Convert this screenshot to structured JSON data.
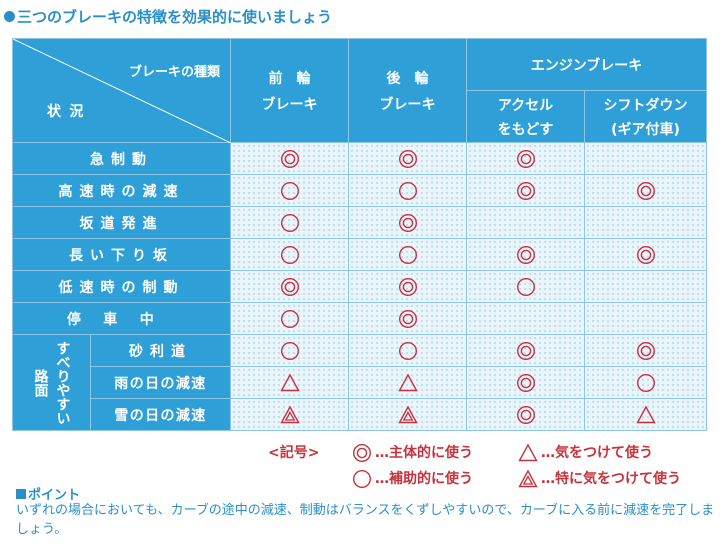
{
  "heading": "三つのブレーキの特徴を効果的に使いましょう",
  "colors": {
    "header_blue": "#2f9fd8",
    "mark_red": "#c8323c",
    "text_blue": "#2a8fc9"
  },
  "table": {
    "corner_top": "ブレーキの種類",
    "corner_bottom": "状況",
    "col_front": [
      "前　輪",
      "ブレーキ"
    ],
    "col_rear": [
      "後　輪",
      "ブレーキ"
    ],
    "col_engine": "エンジンブレーキ",
    "col_accel": [
      "アクセル",
      "をもどす"
    ],
    "col_shift": [
      "シフトダウン",
      "(ギア付車)"
    ],
    "group_label": [
      "すべりやすい",
      "路面"
    ],
    "rows": [
      {
        "label": "急制動",
        "front": "double",
        "rear": "double",
        "accel": "double",
        "shift": ""
      },
      {
        "label": "高速時の減速",
        "front": "circle",
        "rear": "circle",
        "accel": "double",
        "shift": "double"
      },
      {
        "label": "坂道発進",
        "front": "circle",
        "rear": "double",
        "accel": "",
        "shift": ""
      },
      {
        "label": "長い下り坂",
        "front": "circle",
        "rear": "circle",
        "accel": "double",
        "shift": "double"
      },
      {
        "label": "低速時の制動",
        "front": "double",
        "rear": "double",
        "accel": "circle",
        "shift": ""
      },
      {
        "label": "停車中",
        "front": "circle",
        "rear": "double",
        "accel": "",
        "shift": ""
      },
      {
        "label": "砂利道",
        "front": "circle",
        "rear": "circle",
        "accel": "double",
        "shift": "double"
      },
      {
        "label": "雨の日の減速",
        "front": "triangle",
        "rear": "triangle",
        "accel": "double",
        "shift": "circle"
      },
      {
        "label": "雪の日の減速",
        "front": "double-triangle",
        "rear": "double-triangle",
        "accel": "double",
        "shift": "triangle"
      }
    ]
  },
  "legend": {
    "title": "<記号>",
    "double": "…主体的に使う",
    "circle": "…補助的に使う",
    "triangle": "…気をつけて使う",
    "double_triangle": "…特に気をつけて使う"
  },
  "point": {
    "title": "ポイント",
    "text": "いずれの場合においても、カーブの途中の減速、制動はバランスをくずしやすいので、カーブに入る前に減速を完了しましょう。"
  }
}
